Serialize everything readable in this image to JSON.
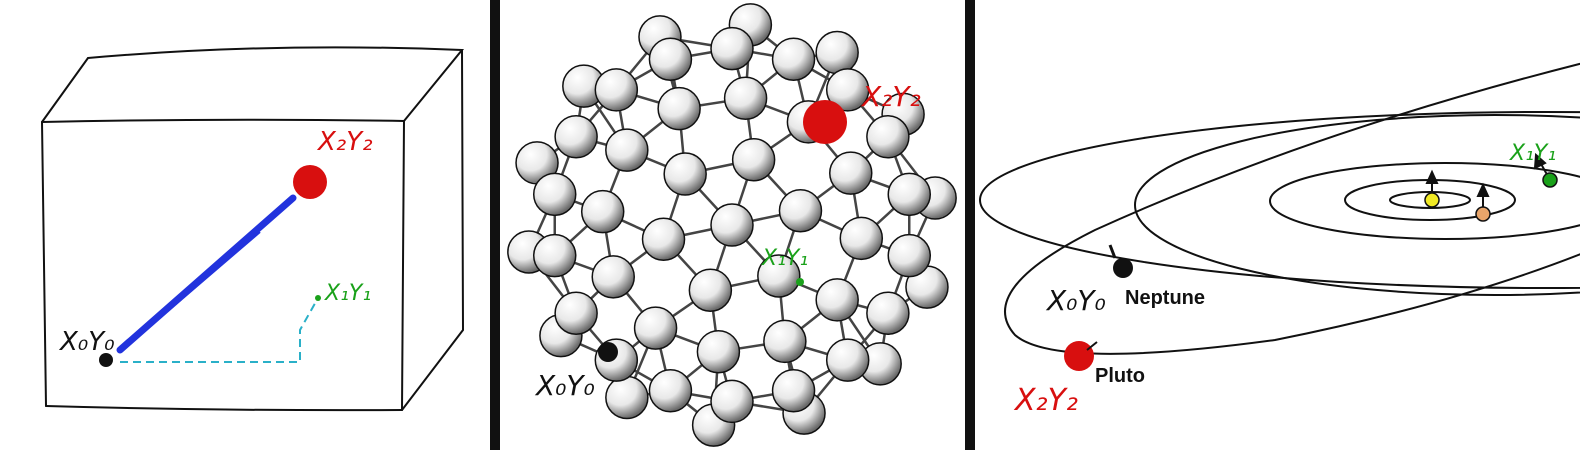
{
  "panels": [
    {
      "name": "box",
      "labels": {
        "p0": "X₀Y₀",
        "p1": "X₁Y₁",
        "p2": "X₂Y₂"
      }
    },
    {
      "name": "molecule",
      "labels": {
        "p0": "X₀Y₀",
        "p1": "X₁Y₁",
        "p2": "X₂Y₂"
      }
    },
    {
      "name": "solar-system",
      "labels": {
        "p0": "X₀Y₀",
        "p1": "X₁Y₁",
        "p2": "X₂Y₂"
      },
      "bodies": {
        "neptune": "Neptune",
        "pluto": "Pluto"
      }
    }
  ],
  "colors": {
    "red": "#d80f0f",
    "green": "#1aa11a",
    "blue": "#2233dd",
    "cyan": "#2ab0c8",
    "ink": "#111111",
    "yellow": "#f1ea25",
    "orange": "#e9a56a"
  }
}
